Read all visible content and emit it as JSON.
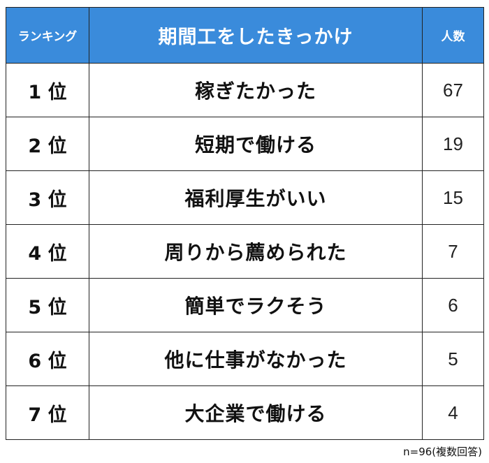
{
  "table": {
    "headers": {
      "rank": "ランキング",
      "reason": "期間工をしたきっかけ",
      "count": "人数"
    },
    "rows": [
      {
        "rank": "1 位",
        "reason": "稼ぎたかった",
        "count": "67"
      },
      {
        "rank": "2 位",
        "reason": "短期で働ける",
        "count": "19"
      },
      {
        "rank": "3 位",
        "reason": "福利厚生がいい",
        "count": "15"
      },
      {
        "rank": "4 位",
        "reason": "周りから薦められた",
        "count": "7"
      },
      {
        "rank": "5 位",
        "reason": "簡単でラクそう",
        "count": "6"
      },
      {
        "rank": "6 位",
        "reason": "他に仕事がなかった",
        "count": "5"
      },
      {
        "rank": "7 位",
        "reason": "大企業で働ける",
        "count": "4"
      }
    ]
  },
  "footnote": "n=96(複数回答)",
  "colors": {
    "header_background": "#3a8bdb",
    "header_text": "#ffffff",
    "border": "#222222"
  }
}
